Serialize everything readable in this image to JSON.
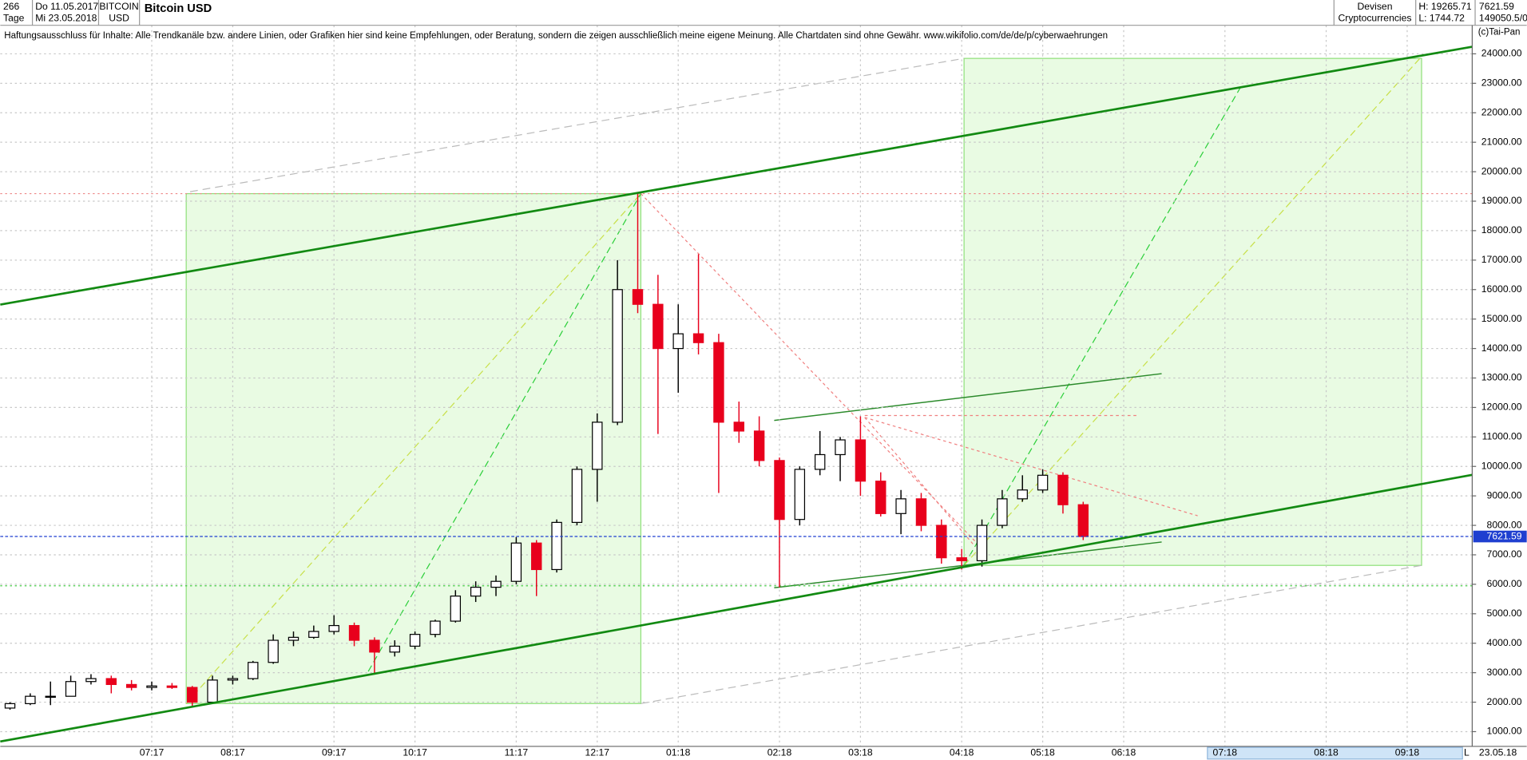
{
  "header": {
    "count": "266",
    "period": "Tage",
    "from": "Do 11.05.2017",
    "to": "Mi 23.05.2018",
    "symbol": "BITCOIN",
    "currency": "USD",
    "market": "Devisen",
    "group": "Cryptocurrencies",
    "high": "H: 19265.71",
    "low": "L: 1744.72",
    "last": "7621.59",
    "volume": "149050.5/0",
    "disclaimer": "Haftungsausschluss für Inhalte: Alle Trendkanäle bzw. andere Linien, oder Grafiken hier sind keine Empfehlungen, oder Beratung, sondern die zeigen ausschließlich meine eigene Meinung. Alle Chartdaten sind ohne Gewähr.  www.wikifolio.com/de/de/p/cyberwaehrungen",
    "copyright": "(c)Tai-Pan",
    "end_date": "23.05.18",
    "scale": "L"
  },
  "chart_data": {
    "type": "candlestick",
    "title": "Bitcoin USD",
    "categories": [
      null,
      null,
      null,
      null,
      null,
      null,
      null,
      "07:17",
      null,
      null,
      null,
      "08:17",
      null,
      null,
      null,
      null,
      "09:17",
      null,
      null,
      null,
      "10:17",
      null,
      null,
      null,
      null,
      "11:17",
      null,
      null,
      null,
      "12:17",
      null,
      null,
      null,
      "01:18",
      null,
      null,
      null,
      null,
      "02:18",
      null,
      null,
      null,
      "03:18",
      null,
      null,
      null,
      null,
      "04:18",
      null,
      null,
      null,
      "05:18",
      null,
      null,
      null,
      "06:18",
      null,
      null,
      null,
      null,
      "07:18",
      null,
      null,
      null,
      null,
      "08:18",
      null,
      null,
      null,
      "09:18"
    ],
    "open": [
      1800,
      1950,
      2200,
      2200,
      2700,
      2800,
      2600,
      2500,
      2550,
      2500,
      2000,
      2750,
      2800,
      3350,
      4100,
      4200,
      4400,
      4600,
      4100,
      3700,
      3900,
      4300,
      4750,
      5600,
      5900,
      6100,
      7400,
      6500,
      8100,
      9900,
      11500,
      16000,
      15500,
      14000,
      14500,
      14200,
      11500,
      11200,
      10200,
      8200,
      9900,
      10400,
      10900,
      9500,
      8400,
      8900,
      8000,
      6900,
      6800,
      8000,
      8900,
      9200,
      9700,
      8700,
      null,
      null,
      null,
      null,
      null,
      null,
      null,
      null,
      null,
      null,
      null,
      null,
      null,
      null,
      null,
      null
    ],
    "high": [
      2000,
      2300,
      2700,
      2900,
      2950,
      2900,
      2750,
      2700,
      2650,
      2550,
      2900,
      2900,
      3400,
      4300,
      4400,
      4600,
      4950,
      4700,
      4200,
      4100,
      4400,
      4800,
      5800,
      6100,
      6300,
      7600,
      7500,
      8200,
      10000,
      11800,
      17000,
      19265.71,
      16500,
      15500,
      17200,
      14500,
      12200,
      11700,
      10300,
      10000,
      11200,
      11000,
      11700,
      9800,
      9200,
      9100,
      8200,
      7200,
      8200,
      9200,
      9700,
      9900,
      9800,
      8800,
      null,
      null,
      null,
      null,
      null,
      null,
      null,
      null,
      null,
      null,
      null,
      null,
      null,
      null,
      null,
      null
    ],
    "low": [
      1744.72,
      1900,
      1900,
      2200,
      2600,
      2300,
      2400,
      2400,
      2450,
      1850,
      1950,
      2600,
      2750,
      3300,
      3900,
      4150,
      4300,
      3900,
      2950,
      3550,
      3800,
      4200,
      4700,
      5400,
      5600,
      6000,
      5600,
      6400,
      8000,
      8800,
      11400,
      15200,
      11100,
      12500,
      13800,
      9100,
      10800,
      10000,
      5900,
      8000,
      9700,
      9500,
      9000,
      8300,
      7700,
      7800,
      6700,
      6500,
      6600,
      7900,
      8800,
      9100,
      8400,
      7500,
      null,
      null,
      null,
      null,
      null,
      null,
      null,
      null,
      null,
      null,
      null,
      null,
      null,
      null,
      null,
      null
    ],
    "close": [
      1950,
      2200,
      2200,
      2700,
      2800,
      2600,
      2500,
      2550,
      2500,
      2000,
      2750,
      2800,
      3350,
      4100,
      4200,
      4400,
      4600,
      4100,
      3700,
      3900,
      4300,
      4750,
      5600,
      5900,
      6100,
      7400,
      6500,
      8100,
      9900,
      11500,
      16000,
      15500,
      14000,
      14500,
      14200,
      11500,
      11200,
      10200,
      8200,
      9900,
      10400,
      10900,
      9500,
      8400,
      8900,
      8000,
      6900,
      6800,
      8000,
      8900,
      9200,
      9700,
      8700,
      7621.59,
      null,
      null,
      null,
      null,
      null,
      null,
      null,
      null,
      null,
      null,
      null,
      null,
      null,
      null,
      null,
      null
    ],
    "up_color": "#000000",
    "down_color": "#e8001c",
    "ylim": [
      500,
      25100
    ],
    "yticks": [
      {
        "value": 1000,
        "label": "1000.00"
      },
      {
        "value": 2000,
        "label": "2000.00"
      },
      {
        "value": 3000,
        "label": "3000.00"
      },
      {
        "value": 4000,
        "label": "4000.00"
      },
      {
        "value": 5000,
        "label": "5000.00"
      },
      {
        "value": 6000,
        "label": "6000.00"
      },
      {
        "value": 7000,
        "label": "7000.00"
      },
      {
        "value": 8000,
        "label": "8000.00"
      },
      {
        "value": 9000,
        "label": "9000.00"
      },
      {
        "value": 10000,
        "label": "10000.00"
      },
      {
        "value": 11000,
        "label": "11000.00"
      },
      {
        "value": 12000,
        "label": "12000.00"
      },
      {
        "value": 13000,
        "label": "13000.00"
      },
      {
        "value": 14000,
        "label": "14000.00"
      },
      {
        "value": 15000,
        "label": "15000.00"
      },
      {
        "value": 16000,
        "label": "16000.00"
      },
      {
        "value": 17000,
        "label": "17000.00"
      },
      {
        "value": 18000,
        "label": "18000.00"
      },
      {
        "value": 19000,
        "label": "19000.00"
      },
      {
        "value": 20000,
        "label": "20000.00"
      },
      {
        "value": 21000,
        "label": "21000.00"
      },
      {
        "value": 22000,
        "label": "22000.00"
      },
      {
        "value": 23000,
        "label": "23000.00"
      },
      {
        "value": 24000,
        "label": "24000.00"
      }
    ],
    "grid": true,
    "last_price": {
      "value": 7621.59,
      "label": "7621.59"
    }
  }
}
